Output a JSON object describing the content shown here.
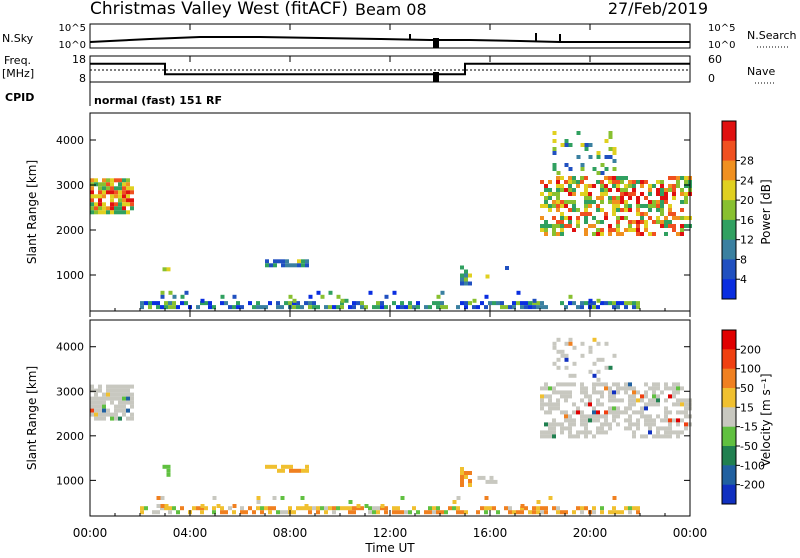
{
  "header": {
    "station": "Christmas Valley West (fitACF)",
    "beam": "Beam 08",
    "date": "27/Feb/2019"
  },
  "top_panels": {
    "nsky": {
      "label": "N.Sky",
      "left_ticks": [
        "10^5",
        "10^0"
      ],
      "right_ticks": [
        "10^5",
        "10^0"
      ],
      "right_label": "N.Search"
    },
    "freq": {
      "label_line1": "Freq.",
      "label_line2": "[MHz]",
      "left_ticks": [
        "18",
        "8"
      ],
      "right_ticks": [
        "60",
        "0"
      ],
      "right_label": "Nave"
    },
    "cpid": {
      "label": "CPID",
      "text": "normal (fast) 151 RF"
    }
  },
  "chart_data": [
    {
      "type": "line",
      "name": "freq-trace",
      "x_range_hours": [
        0,
        24
      ],
      "y_range": [
        8,
        18
      ],
      "x": [
        0,
        3,
        3,
        15,
        15,
        24
      ],
      "y": [
        15,
        15,
        11,
        11,
        15,
        15
      ]
    },
    {
      "type": "heatmap",
      "name": "power",
      "ylabel": "Slant Range [km]",
      "ylim": [
        200,
        4600
      ],
      "yticks": [
        "1000",
        "2000",
        "3000",
        "4000"
      ],
      "colorbar_label": "Power [dB]",
      "colorbar_ticks": [
        "4",
        "8",
        "12",
        "16",
        "20",
        "24",
        "28"
      ],
      "colorbar_colors": [
        "#0a2ee0",
        "#2050c0",
        "#3a80a0",
        "#30a060",
        "#88c030",
        "#e0d020",
        "#f09020",
        "#f05020",
        "#e01010"
      ]
    },
    {
      "type": "heatmap",
      "name": "velocity",
      "ylabel": "Slant Range [km]",
      "ylim": [
        200,
        4600
      ],
      "yticks": [
        "1000",
        "2000",
        "3000",
        "4000"
      ],
      "colorbar_label": "Velocity [m s⁻¹]",
      "colorbar_ticks": [
        "200",
        "100",
        "50",
        "15",
        "-15",
        "-50",
        "-100",
        "-200"
      ],
      "colorbar_colors": [
        "#1030c0",
        "#2060a0",
        "#208050",
        "#60c040",
        "#c8c8c0",
        "#f0c030",
        "#f08020",
        "#f04010",
        "#e00000"
      ]
    }
  ],
  "xaxis": {
    "ticks": [
      "00:00",
      "04:00",
      "08:00",
      "12:00",
      "16:00",
      "20:00",
      "00:00"
    ],
    "label": "Time UT"
  }
}
